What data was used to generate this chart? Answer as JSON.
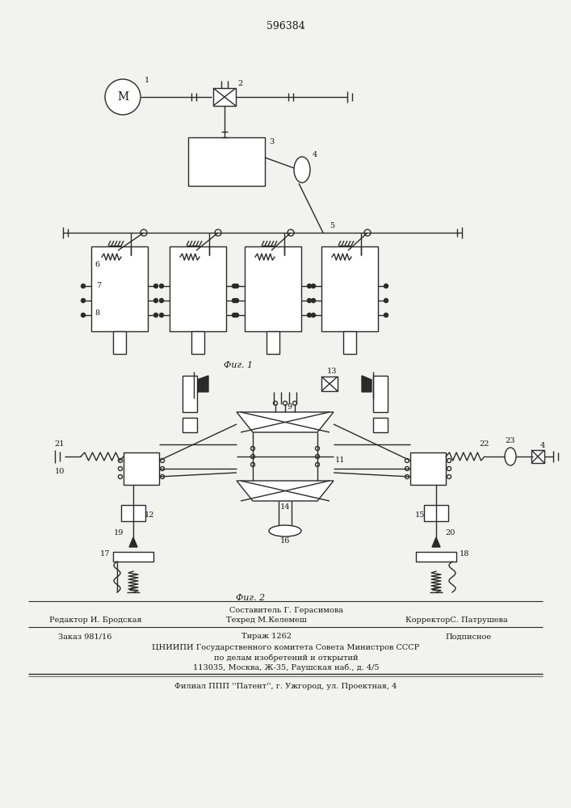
{
  "bg_color": "#f2f2ee",
  "line_color": "#2a2a2a",
  "title_text": "596384",
  "fig1_caption": "Фиг. 1",
  "fig2_caption": "Фиг. 2",
  "footer_line1": "Составитель Г. Герасимова",
  "footer_line2_left": "Редактор И. Бродская",
  "footer_line2_mid": "Техред М.Келемеш",
  "footer_line2_right": "КорректорС. Патрушева",
  "footer_line3_left": "Заказ 981/16",
  "footer_line3_mid": "Тираж 1262",
  "footer_line3_right": "Подписное",
  "footer_line4": "ЦНИИПИ Государственного комитета Совета Министров СССР",
  "footer_line5": "по делам изобретений и открытий",
  "footer_line6": "113035, Москва, Ж-35, Раушская наб., д. 4/5",
  "footer_line7": "Филиал ППП ''Патент'', г. Ужгород, ул. Проектная, 4"
}
